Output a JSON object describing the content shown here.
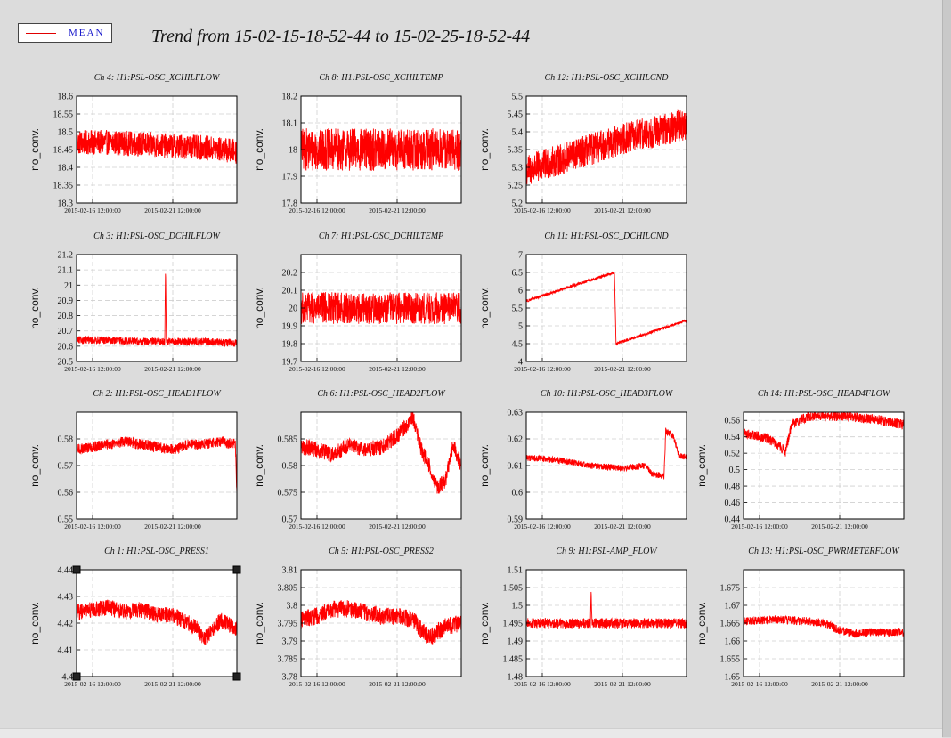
{
  "legend": {
    "label": "MEAN",
    "line_color": "#ff0000"
  },
  "title": "Trend from 15-02-15-18-52-44 to 15-02-25-18-52-44",
  "x_tick_labels": [
    "2015-02-16 12:00:00",
    "2015-02-21 12:00:00"
  ],
  "chart_data": [
    {
      "type": "line",
      "title": "Ch 4: H1:PSL-OSC_XCHILFLOW",
      "ylabel": "no_conv.",
      "color": "#ff0000",
      "ylim": [
        18.3,
        18.6
      ],
      "yticks": [
        18.3,
        18.35,
        18.4,
        18.45,
        18.5,
        18.55,
        18.6
      ],
      "ytick_labels": [
        "18.3",
        "18.35",
        "18.4",
        "18.45",
        "18.5",
        "18.55",
        "18.6"
      ],
      "x": [
        0,
        2,
        4,
        6,
        8,
        10
      ],
      "y": [
        18.47,
        18.47,
        18.465,
        18.46,
        18.455,
        18.445
      ],
      "noise": 0.035
    },
    {
      "type": "line",
      "title": "Ch 8: H1:PSL-OSC_XCHILTEMP",
      "ylabel": "no_conv.",
      "color": "#ff0000",
      "ylim": [
        17.8,
        18.2
      ],
      "yticks": [
        17.8,
        17.9,
        18,
        18.1,
        18.2
      ],
      "ytick_labels": [
        "17.8",
        "17.9",
        "18",
        "18.1",
        "18.2"
      ],
      "x": [
        0,
        2,
        4,
        6,
        8,
        10
      ],
      "y": [
        18,
        18,
        18,
        18,
        18,
        18
      ],
      "noise": 0.08
    },
    {
      "type": "line",
      "title": "Ch 12: H1:PSL-OSC_XCHILCND",
      "ylabel": "no_conv.",
      "color": "#ff0000",
      "ylim": [
        5.2,
        5.5
      ],
      "yticks": [
        5.2,
        5.25,
        5.3,
        5.35,
        5.4,
        5.45,
        5.5
      ],
      "ytick_labels": [
        "5.2",
        "5.25",
        "5.3",
        "5.35",
        "5.4",
        "5.45",
        "5.5"
      ],
      "x": [
        0,
        2,
        4,
        6,
        8,
        10
      ],
      "y": [
        5.29,
        5.32,
        5.35,
        5.38,
        5.4,
        5.42
      ],
      "noise": 0.045
    },
    {
      "type": "line",
      "title": "Ch 3: H1:PSL-OSC_DCHILFLOW",
      "ylabel": "no_conv.",
      "color": "#ff0000",
      "ylim": [
        20.5,
        21.2
      ],
      "yticks": [
        20.5,
        20.6,
        20.7,
        20.8,
        20.9,
        21,
        21.1,
        21.2
      ],
      "ytick_labels": [
        "20.5",
        "20.6",
        "20.7",
        "20.8",
        "20.9",
        "21",
        "21.1",
        "21.2"
      ],
      "x": [
        0,
        2,
        4,
        5.5,
        5.55,
        5.6,
        8,
        10
      ],
      "y": [
        20.64,
        20.64,
        20.63,
        20.63,
        21.12,
        20.63,
        20.63,
        20.62
      ],
      "noise": 0.025
    },
    {
      "type": "line",
      "title": "Ch 7: H1:PSL-OSC_DCHILTEMP",
      "ylabel": "no_conv.",
      "color": "#ff0000",
      "ylim": [
        19.7,
        20.3
      ],
      "yticks": [
        19.7,
        19.8,
        19.9,
        20,
        20.1,
        20.2
      ],
      "ytick_labels": [
        "19.7",
        "19.8",
        "19.9",
        "20",
        "20.1",
        "20.2"
      ],
      "x": [
        0,
        2,
        4,
        6,
        8,
        10
      ],
      "y": [
        20,
        20,
        20,
        20,
        20,
        20
      ],
      "noise": 0.09
    },
    {
      "type": "line",
      "title": "Ch 11: H1:PSL-OSC_DCHILCND",
      "ylabel": "no_conv.",
      "color": "#ff0000",
      "ylim": [
        4,
        7
      ],
      "yticks": [
        4,
        4.5,
        5,
        5.5,
        6,
        6.5,
        7
      ],
      "ytick_labels": [
        "4",
        "4.5",
        "5",
        "5.5",
        "6",
        "6.5",
        "7"
      ],
      "x": [
        0,
        5.5,
        5.6,
        10
      ],
      "y": [
        5.7,
        6.5,
        4.5,
        5.15
      ],
      "noise": 0.04
    },
    {
      "type": "line",
      "title": "Ch 2: H1:PSL-OSC_HEAD1FLOW",
      "ylabel": "no_conv.",
      "color": "#ff0000",
      "ylim": [
        0.55,
        0.59
      ],
      "yticks": [
        0.55,
        0.56,
        0.57,
        0.58
      ],
      "ytick_labels": [
        "0.55",
        "0.56",
        "0.57",
        "0.58"
      ],
      "x": [
        0,
        1,
        2,
        3,
        4,
        5,
        6,
        7,
        8,
        9,
        9.9,
        10
      ],
      "y": [
        0.576,
        0.577,
        0.578,
        0.579,
        0.578,
        0.577,
        0.576,
        0.578,
        0.578,
        0.579,
        0.578,
        0.56
      ],
      "noise": 0.002
    },
    {
      "type": "line",
      "title": "Ch 6: H1:PSL-OSC_HEAD2FLOW",
      "ylabel": "no_conv.",
      "color": "#ff0000",
      "ylim": [
        0.57,
        0.59
      ],
      "yticks": [
        0.57,
        0.575,
        0.58,
        0.585
      ],
      "ytick_labels": [
        "0.57",
        "0.575",
        "0.58",
        "0.585"
      ],
      "x": [
        0,
        1,
        2,
        3,
        4,
        5,
        6,
        7,
        7.5,
        8,
        8.5,
        9,
        9.5,
        10
      ],
      "y": [
        0.5835,
        0.583,
        0.582,
        0.584,
        0.583,
        0.5835,
        0.5855,
        0.589,
        0.583,
        0.58,
        0.576,
        0.577,
        0.584,
        0.58
      ],
      "noise": 0.0015
    },
    {
      "type": "line",
      "title": "Ch 10: H1:PSL-OSC_HEAD3FLOW",
      "ylabel": "no_conv.",
      "color": "#ff0000",
      "ylim": [
        0.59,
        0.63
      ],
      "yticks": [
        0.59,
        0.6,
        0.61,
        0.62,
        0.63
      ],
      "ytick_labels": [
        "0.59",
        "0.6",
        "0.61",
        "0.62",
        "0.63"
      ],
      "x": [
        0,
        2,
        4,
        6,
        7.5,
        7.8,
        8.6,
        8.7,
        9.2,
        9.5,
        10
      ],
      "y": [
        0.613,
        0.612,
        0.61,
        0.609,
        0.61,
        0.607,
        0.606,
        0.623,
        0.621,
        0.614,
        0.613
      ],
      "noise": 0.0012
    },
    {
      "type": "line",
      "title": "Ch 14: H1:PSL-OSC_HEAD4FLOW",
      "ylabel": "no_conv.",
      "color": "#ff0000",
      "ylim": [
        0.44,
        0.57
      ],
      "yticks": [
        0.44,
        0.46,
        0.48,
        0.5,
        0.52,
        0.54,
        0.56
      ],
      "ytick_labels": [
        "0.44",
        "0.46",
        "0.48",
        "0.5",
        "0.52",
        "0.54",
        "0.56"
      ],
      "x": [
        0,
        1.5,
        2.5,
        2.6,
        3,
        4,
        6,
        8,
        10
      ],
      "y": [
        0.545,
        0.538,
        0.525,
        0.52,
        0.555,
        0.565,
        0.565,
        0.562,
        0.555
      ],
      "noise": 0.006
    },
    {
      "type": "line",
      "title": "Ch 1: H1:PSL-OSC_PRESS1",
      "ylabel": "no_conv.",
      "color": "#ff0000",
      "ylim": [
        4.4,
        4.44
      ],
      "yticks": [
        4.4,
        4.41,
        4.42,
        4.43,
        4.44
      ],
      "ytick_labels": [
        "4.4",
        "4.41",
        "4.42",
        "4.43",
        "4.44"
      ],
      "x": [
        0,
        1,
        2,
        3,
        4,
        5,
        6,
        7,
        7.5,
        8,
        8.5,
        9,
        10
      ],
      "y": [
        4.424,
        4.425,
        4.426,
        4.424,
        4.425,
        4.423,
        4.423,
        4.42,
        4.418,
        4.414,
        4.418,
        4.421,
        4.418
      ],
      "noise": 0.003
    },
    {
      "type": "line",
      "title": "Ch 5: H1:PSL-OSC_PRESS2",
      "ylabel": "no_conv.",
      "color": "#ff0000",
      "ylim": [
        3.78,
        3.81
      ],
      "yticks": [
        3.78,
        3.785,
        3.79,
        3.795,
        3.8,
        3.805,
        3.81
      ],
      "ytick_labels": [
        "3.78",
        "3.785",
        "3.79",
        "3.795",
        "3.8",
        "3.805",
        "3.81"
      ],
      "x": [
        0,
        1,
        2,
        3,
        4,
        5,
        6,
        7,
        7.5,
        8,
        9,
        10
      ],
      "y": [
        3.796,
        3.797,
        3.799,
        3.799,
        3.798,
        3.797,
        3.797,
        3.796,
        3.793,
        3.791,
        3.794,
        3.795
      ],
      "noise": 0.0025
    },
    {
      "type": "line",
      "title": "Ch 9: H1:PSL-AMP_FLOW",
      "ylabel": "no_conv.",
      "color": "#ff0000",
      "ylim": [
        1.48,
        1.51
      ],
      "yticks": [
        1.48,
        1.485,
        1.49,
        1.495,
        1.5,
        1.505,
        1.51
      ],
      "ytick_labels": [
        "1.48",
        "1.485",
        "1.49",
        "1.495",
        "1.5",
        "1.505",
        "1.51"
      ],
      "x": [
        0,
        4,
        4.05,
        4.1,
        10
      ],
      "y": [
        1.495,
        1.495,
        1.505,
        1.495,
        1.495
      ],
      "noise": 0.0014
    },
    {
      "type": "line",
      "title": "Ch 13: H1:PSL-OSC_PWRMETERFLOW",
      "ylabel": "no_conv.",
      "color": "#ff0000",
      "ylim": [
        1.65,
        1.68
      ],
      "yticks": [
        1.65,
        1.655,
        1.66,
        1.665,
        1.67,
        1.675
      ],
      "ytick_labels": [
        "1.65",
        "1.655",
        "1.66",
        "1.665",
        "1.67",
        "1.675"
      ],
      "x": [
        0,
        2,
        4,
        5,
        6,
        7,
        8,
        10
      ],
      "y": [
        1.6655,
        1.666,
        1.6655,
        1.665,
        1.663,
        1.662,
        1.6625,
        1.6625
      ],
      "noise": 0.0012
    }
  ]
}
